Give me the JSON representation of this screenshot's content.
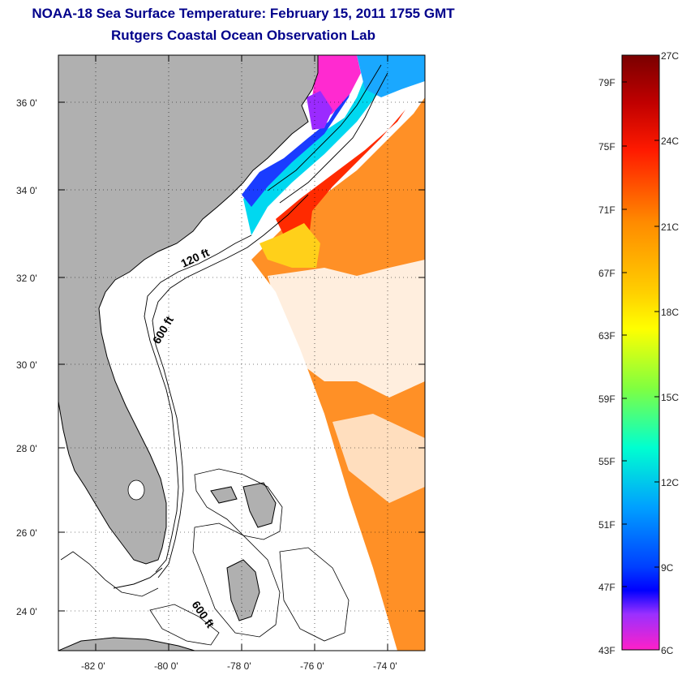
{
  "title": "NOAA-18 Sea Surface Temperature:  February 15, 2011 1755 GMT",
  "subtitle": "Rutgers Coastal Ocean Observation Lab",
  "map": {
    "lat_labels": [
      "36 0'",
      "34 0'",
      "32 0'",
      "30 0'",
      "28 0'",
      "26 0'",
      "24 0'"
    ],
    "lon_labels": [
      "-82 0'",
      "-80 0'",
      "-78 0'",
      "-76 0'",
      "-74 0'"
    ],
    "contour_labels": [
      "120 ft",
      "600 ft",
      "600 ft"
    ],
    "land_color": "#b0b0b0"
  },
  "colorbar": {
    "fahrenheit_labels": [
      "79F",
      "75F",
      "71F",
      "67F",
      "63F",
      "59F",
      "55F",
      "51F",
      "47F",
      "43F"
    ],
    "celsius_labels": [
      "27C",
      "24C",
      "21C",
      "18C",
      "15C",
      "12C",
      "9C",
      "6C"
    ]
  }
}
